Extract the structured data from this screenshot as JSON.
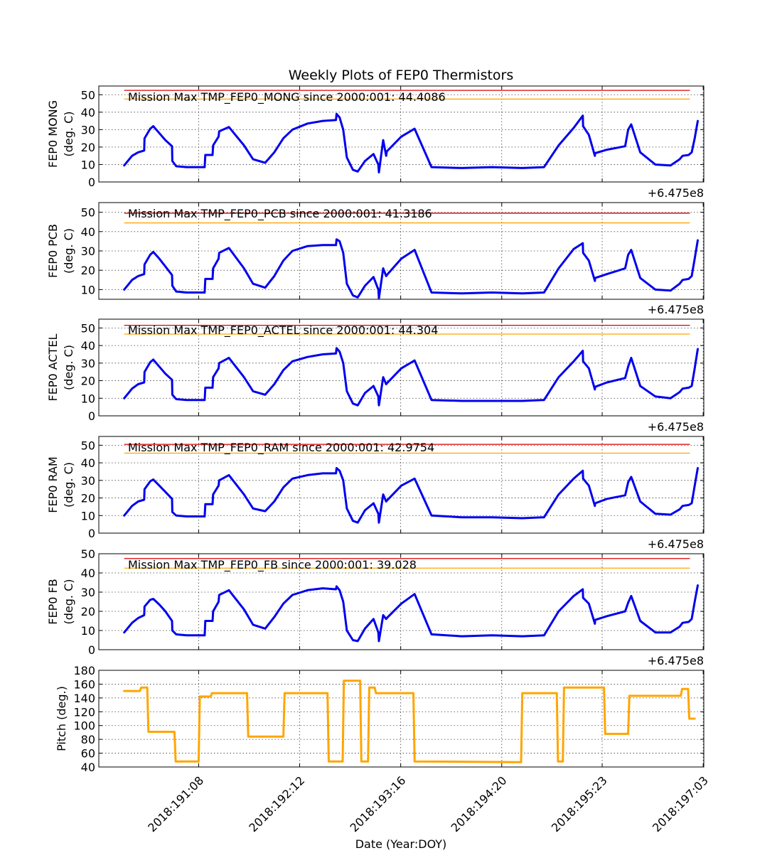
{
  "figure": {
    "title": "Weekly Plots of FEP0 Thermistors",
    "xlabel": "Date (Year:DOY)",
    "x_offset_label": "+6.475e8",
    "x_tick_labels": [
      "2018:191:08",
      "2018:192:12",
      "2018:193:16",
      "2018:194:20",
      "2018:195:23",
      "2018:197:03"
    ],
    "colors": {
      "data": "#0000ee",
      "mission_max": "#dd0000",
      "limit": "#ffa500",
      "pitch": "#ffa500"
    }
  },
  "chart_data": [
    {
      "type": "line",
      "ylabel": [
        "FEP0 MONG",
        "(deg. C)"
      ],
      "ylim": [
        0,
        55
      ],
      "yticks": [
        0,
        10,
        20,
        30,
        40,
        50
      ],
      "grid": true,
      "annotation": "Mission Max TMP_FEP0_MONG since 2000:001: 44.4086",
      "hlines": [
        {
          "y": 52.5,
          "color": "red"
        },
        {
          "y": 47.5,
          "color": "orange"
        }
      ],
      "x_range": [
        0,
        1
      ],
      "series": [
        {
          "color": "blue",
          "x": [
            0.042,
            0.055,
            0.065,
            0.075,
            0.0755,
            0.085,
            0.09,
            0.1,
            0.11,
            0.121,
            0.1215,
            0.128,
            0.145,
            0.175,
            0.176,
            0.188,
            0.189,
            0.198,
            0.199,
            0.215,
            0.24,
            0.255,
            0.275,
            0.29,
            0.305,
            0.32,
            0.345,
            0.37,
            0.392,
            0.393,
            0.398,
            0.404,
            0.41,
            0.42,
            0.428,
            0.44,
            0.454,
            0.462,
            0.463,
            0.47,
            0.475,
            0.476,
            0.5,
            0.522,
            0.55,
            0.6,
            0.65,
            0.7,
            0.736,
            0.76,
            0.785,
            0.8,
            0.8005,
            0.81,
            0.82,
            0.8205,
            0.84,
            0.87,
            0.875,
            0.88,
            0.895,
            0.92,
            0.945,
            0.96,
            0.965,
            0.975,
            0.98,
            0.985,
            0.99
          ],
          "y": [
            9.5,
            15,
            17,
            18,
            25,
            30.5,
            32,
            28,
            24,
            20.5,
            12,
            9,
            8.5,
            8.5,
            15.5,
            15.5,
            21,
            26,
            29,
            31.5,
            21,
            13,
            11,
            17,
            25,
            30,
            33.5,
            35,
            35.5,
            39,
            37,
            30,
            14,
            7,
            6,
            12,
            16,
            10,
            5.5,
            24,
            15,
            17.5,
            26,
            30.5,
            8.5,
            8,
            8.5,
            8,
            8.5,
            21,
            31,
            38,
            32,
            27,
            15,
            16.5,
            18.5,
            20.5,
            30,
            33,
            17,
            10,
            9.5,
            13,
            15,
            15.5,
            17,
            25,
            35
          ]
        }
      ]
    },
    {
      "type": "line",
      "ylabel": [
        "FEP0 PCB",
        "(deg. C)"
      ],
      "ylim": [
        5,
        55
      ],
      "yticks": [
        10,
        20,
        30,
        40,
        50
      ],
      "grid": true,
      "annotation": "Mission Max TMP_FEP0_PCB since 2000:001: 41.3186",
      "hlines": [
        {
          "y": 49.5,
          "color": "red"
        },
        {
          "y": 44.5,
          "color": "orange"
        }
      ],
      "x_range": [
        0,
        1
      ],
      "series": [
        {
          "color": "blue",
          "x": [
            0.042,
            0.055,
            0.065,
            0.075,
            0.0755,
            0.085,
            0.09,
            0.1,
            0.11,
            0.121,
            0.1215,
            0.128,
            0.145,
            0.175,
            0.176,
            0.188,
            0.189,
            0.198,
            0.199,
            0.215,
            0.24,
            0.255,
            0.275,
            0.29,
            0.305,
            0.32,
            0.345,
            0.37,
            0.392,
            0.393,
            0.398,
            0.404,
            0.41,
            0.42,
            0.428,
            0.44,
            0.454,
            0.462,
            0.463,
            0.47,
            0.475,
            0.476,
            0.5,
            0.522,
            0.55,
            0.6,
            0.65,
            0.7,
            0.736,
            0.76,
            0.785,
            0.8,
            0.8005,
            0.81,
            0.82,
            0.8205,
            0.84,
            0.87,
            0.875,
            0.88,
            0.895,
            0.92,
            0.945,
            0.96,
            0.965,
            0.975,
            0.98,
            0.985,
            0.99
          ],
          "y": [
            10,
            15,
            17,
            18,
            23,
            28,
            29.5,
            26,
            22,
            17.5,
            12,
            9,
            8.5,
            8.5,
            15.5,
            15.5,
            21,
            26,
            29,
            31.5,
            21,
            13,
            11,
            17,
            25,
            30,
            32.5,
            33,
            33,
            36,
            35,
            29,
            13,
            7,
            6,
            12,
            16.5,
            10,
            5.5,
            21,
            17,
            17.5,
            26,
            30.5,
            8.5,
            8,
            8.5,
            8,
            8.5,
            21,
            31,
            34,
            29,
            25,
            14.5,
            16,
            18,
            21,
            28,
            30.5,
            16,
            10,
            9.5,
            13,
            15,
            15.5,
            17,
            26,
            35.5
          ]
        }
      ]
    },
    {
      "type": "line",
      "ylabel": [
        "FEP0 ACTEL",
        "(deg. C)"
      ],
      "ylim": [
        0,
        55
      ],
      "yticks": [
        0,
        10,
        20,
        30,
        40,
        50
      ],
      "grid": true,
      "annotation": "Mission Max TMP_FEP0_ACTEL since 2000:001: 44.304",
      "hlines": [
        {
          "y": 51.5,
          "color": "red"
        },
        {
          "y": 46.5,
          "color": "orange"
        }
      ],
      "x_range": [
        0,
        1
      ],
      "series": [
        {
          "color": "blue",
          "x": [
            0.042,
            0.055,
            0.065,
            0.075,
            0.0755,
            0.085,
            0.09,
            0.1,
            0.11,
            0.121,
            0.1215,
            0.128,
            0.145,
            0.175,
            0.176,
            0.188,
            0.189,
            0.198,
            0.199,
            0.215,
            0.24,
            0.255,
            0.275,
            0.29,
            0.305,
            0.32,
            0.345,
            0.37,
            0.392,
            0.393,
            0.398,
            0.404,
            0.41,
            0.42,
            0.428,
            0.44,
            0.454,
            0.462,
            0.463,
            0.47,
            0.475,
            0.476,
            0.5,
            0.522,
            0.55,
            0.6,
            0.65,
            0.7,
            0.736,
            0.76,
            0.785,
            0.8,
            0.8005,
            0.81,
            0.82,
            0.8205,
            0.84,
            0.87,
            0.875,
            0.88,
            0.895,
            0.92,
            0.945,
            0.96,
            0.965,
            0.975,
            0.98,
            0.985,
            0.99
          ],
          "y": [
            10,
            15.5,
            18,
            19,
            25,
            30.5,
            32,
            28,
            24,
            20.5,
            12,
            9.5,
            9,
            9,
            16,
            16,
            22,
            27,
            30,
            33,
            22,
            14,
            12,
            18,
            26,
            31,
            33.5,
            35,
            35.5,
            38.5,
            36.5,
            30,
            14,
            7,
            6,
            13,
            17,
            11,
            6,
            22,
            18,
            18.5,
            27,
            31.5,
            9,
            8.5,
            8.5,
            8.5,
            9,
            22,
            31,
            37,
            31,
            27,
            15,
            16.5,
            19,
            21.5,
            28,
            33,
            17,
            11,
            10,
            13.5,
            15.5,
            16,
            17,
            27,
            38
          ]
        }
      ]
    },
    {
      "type": "line",
      "ylabel": [
        "FEP0 RAM",
        "(deg. C)"
      ],
      "ylim": [
        0,
        55
      ],
      "yticks": [
        0,
        10,
        20,
        30,
        40,
        50
      ],
      "grid": true,
      "annotation": "Mission Max TMP_FEP0_RAM since 2000:001: 42.9754",
      "hlines": [
        {
          "y": 50.5,
          "color": "red"
        },
        {
          "y": 45.5,
          "color": "orange"
        }
      ],
      "x_range": [
        0,
        1
      ],
      "series": [
        {
          "color": "blue",
          "x": [
            0.042,
            0.055,
            0.065,
            0.075,
            0.0755,
            0.085,
            0.09,
            0.1,
            0.11,
            0.121,
            0.1215,
            0.128,
            0.145,
            0.175,
            0.176,
            0.188,
            0.189,
            0.198,
            0.199,
            0.215,
            0.24,
            0.255,
            0.275,
            0.29,
            0.305,
            0.32,
            0.345,
            0.37,
            0.392,
            0.393,
            0.398,
            0.404,
            0.41,
            0.42,
            0.428,
            0.44,
            0.454,
            0.462,
            0.463,
            0.47,
            0.475,
            0.476,
            0.5,
            0.522,
            0.55,
            0.6,
            0.65,
            0.7,
            0.736,
            0.76,
            0.785,
            0.8,
            0.8005,
            0.81,
            0.82,
            0.8205,
            0.84,
            0.87,
            0.875,
            0.88,
            0.895,
            0.92,
            0.945,
            0.96,
            0.965,
            0.975,
            0.98,
            0.985,
            0.99
          ],
          "y": [
            10,
            15.5,
            18,
            19,
            25,
            29.5,
            30.5,
            27,
            23.5,
            19.5,
            12,
            10,
            9.5,
            9.5,
            16.5,
            16.5,
            22,
            27,
            30,
            33,
            22,
            14,
            12.5,
            18,
            26,
            31,
            33,
            34,
            34,
            37,
            35.5,
            30,
            14,
            7,
            6,
            13,
            17,
            11,
            6,
            22,
            18,
            18.5,
            27,
            31,
            10,
            9,
            9,
            8.5,
            9,
            22,
            31,
            35.5,
            31,
            27,
            15.5,
            17,
            19.5,
            21.5,
            29,
            32,
            18,
            11,
            10.5,
            13.5,
            15.5,
            16,
            17,
            27,
            37
          ]
        }
      ]
    },
    {
      "type": "line",
      "ylabel": [
        "FEP0 FB",
        "(deg. C)"
      ],
      "ylim": [
        0,
        50
      ],
      "yticks": [
        0,
        10,
        20,
        30,
        40,
        50
      ],
      "grid": true,
      "annotation": "Mission Max TMP_FEP0_FB since 2000:001: 39.028",
      "hlines": [
        {
          "y": 47.5,
          "color": "red"
        },
        {
          "y": 42.5,
          "color": "orange"
        }
      ],
      "x_range": [
        0,
        1
      ],
      "series": [
        {
          "color": "blue",
          "x": [
            0.042,
            0.055,
            0.065,
            0.075,
            0.0755,
            0.085,
            0.09,
            0.1,
            0.11,
            0.121,
            0.1215,
            0.128,
            0.145,
            0.175,
            0.176,
            0.188,
            0.189,
            0.198,
            0.199,
            0.215,
            0.24,
            0.255,
            0.275,
            0.29,
            0.305,
            0.32,
            0.345,
            0.37,
            0.392,
            0.393,
            0.398,
            0.404,
            0.41,
            0.42,
            0.428,
            0.44,
            0.454,
            0.462,
            0.463,
            0.47,
            0.475,
            0.476,
            0.5,
            0.522,
            0.55,
            0.6,
            0.65,
            0.7,
            0.736,
            0.76,
            0.785,
            0.8,
            0.8005,
            0.81,
            0.82,
            0.8205,
            0.84,
            0.87,
            0.875,
            0.88,
            0.895,
            0.92,
            0.945,
            0.96,
            0.965,
            0.975,
            0.98,
            0.985,
            0.99
          ],
          "y": [
            9,
            14,
            16.5,
            18,
            22.5,
            26,
            26.5,
            23.5,
            20,
            15,
            10,
            8,
            7.5,
            7.5,
            15,
            15,
            20,
            25,
            28.5,
            31,
            21,
            13,
            11,
            17,
            24,
            28.5,
            31,
            32,
            31.5,
            33,
            31,
            25,
            10,
            5,
            4.5,
            11,
            16,
            9,
            4.5,
            18,
            16,
            16.5,
            24,
            29,
            8,
            7,
            7.5,
            7,
            7.5,
            20,
            28,
            31.5,
            27,
            24,
            13.5,
            15.5,
            17.5,
            20,
            24.5,
            28,
            15,
            9,
            9,
            12,
            14,
            14.5,
            16,
            25,
            33.5
          ]
        }
      ]
    },
    {
      "type": "line",
      "ylabel": [
        "Pitch (deg.)"
      ],
      "ylim": [
        40,
        180
      ],
      "yticks": [
        40,
        60,
        80,
        100,
        120,
        140,
        160,
        180
      ],
      "grid": true,
      "annotation": "",
      "hlines": [],
      "x_range": [
        0,
        1
      ],
      "series": [
        {
          "color": "orange",
          "x": [
            0.042,
            0.068,
            0.07,
            0.08,
            0.082,
            0.125,
            0.127,
            0.165,
            0.167,
            0.185,
            0.187,
            0.245,
            0.247,
            0.305,
            0.307,
            0.378,
            0.38,
            0.403,
            0.405,
            0.432,
            0.434,
            0.445,
            0.447,
            0.456,
            0.458,
            0.52,
            0.522,
            0.698,
            0.7,
            0.757,
            0.759,
            0.767,
            0.769,
            0.835,
            0.837,
            0.875,
            0.877,
            0.962,
            0.964,
            0.974,
            0.976,
            0.985
          ],
          "y": [
            150,
            150,
            155,
            155,
            91,
            91,
            48,
            48,
            142,
            142,
            147,
            147,
            84,
            84,
            147,
            147,
            48,
            48,
            165,
            165,
            48,
            48,
            155,
            155,
            147,
            147,
            48,
            47,
            147,
            147,
            48,
            48,
            155,
            155,
            88,
            88,
            143,
            143,
            153,
            153,
            110,
            110
          ]
        }
      ]
    }
  ]
}
